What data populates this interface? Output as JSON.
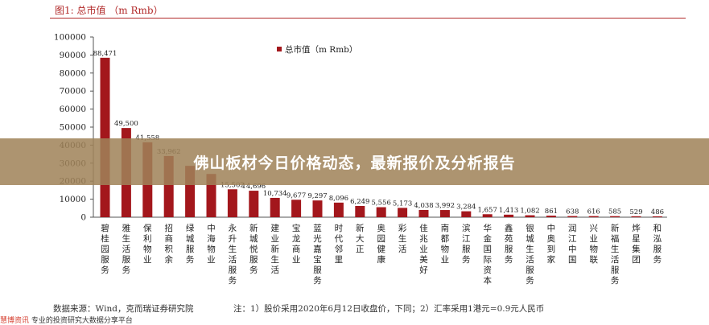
{
  "title": "图1: 总市值 （m Rmb）",
  "banner_text": "佛山板材今日价格动态，最新报价及分析报告",
  "source_text": "数据来源：Wind，克而瑞证券研究院",
  "note_text": "注：1）股价采用2020年6月12日收盘价，下同；2）汇率采用1港元=0.9元人民币",
  "watermark": {
    "brand": "慧博资讯",
    "rest": "专业的投资研究大数据分享平台"
  },
  "colors": {
    "bar": "#a3171c",
    "title": "#b22a2a"
  },
  "chart_data": {
    "type": "bar",
    "title": "图1: 总市值 （m Rmb）",
    "legend": "总市值（m Rmb）",
    "legend_position": "top-center",
    "grid": false,
    "ylim": [
      0,
      100000
    ],
    "yticks": [
      "100000",
      "90000",
      "80000",
      "70000",
      "60000",
      "50000",
      "40000",
      "30000",
      "20000",
      "10000",
      "0"
    ],
    "categories": [
      "碧桂园服务",
      "雅生活服务",
      "保利物业",
      "招商积余",
      "绿城服务",
      "中海物业",
      "永升生活服务",
      "新城悦服务",
      "建业新生活",
      "宝龙商业",
      "蓝光嘉宝服务",
      "时代邻里",
      "新大正",
      "奥园健康",
      "彩生活",
      "佳兆业美好",
      "南都物业",
      "滨江服务",
      "华金国际资本",
      "鑫苑服务",
      "银城生活服务",
      "中奥到家",
      "润江中国",
      "兴业物联",
      "新福生活服务",
      "烨星集团",
      "和泓服务"
    ],
    "values": [
      88471,
      49500,
      41558,
      33962,
      28500,
      24000,
      15502,
      14696,
      10734,
      9677,
      9297,
      8096,
      6249,
      5556,
      5173,
      4038,
      3992,
      3284,
      1657,
      1413,
      1082,
      861,
      638,
      616,
      585,
      529,
      486
    ],
    "labels": [
      "88,471",
      "49,500",
      "41,558",
      "33,962",
      "",
      "",
      "15,502",
      "14,696",
      "10,734",
      "9,677",
      "9,297",
      "8,096",
      "6,249",
      "5,556",
      "5,173",
      "4,038",
      "3,992",
      "3,284",
      "1,657",
      "1,413",
      "1,082",
      "861",
      "638",
      "616",
      "585",
      "529",
      "486"
    ]
  }
}
